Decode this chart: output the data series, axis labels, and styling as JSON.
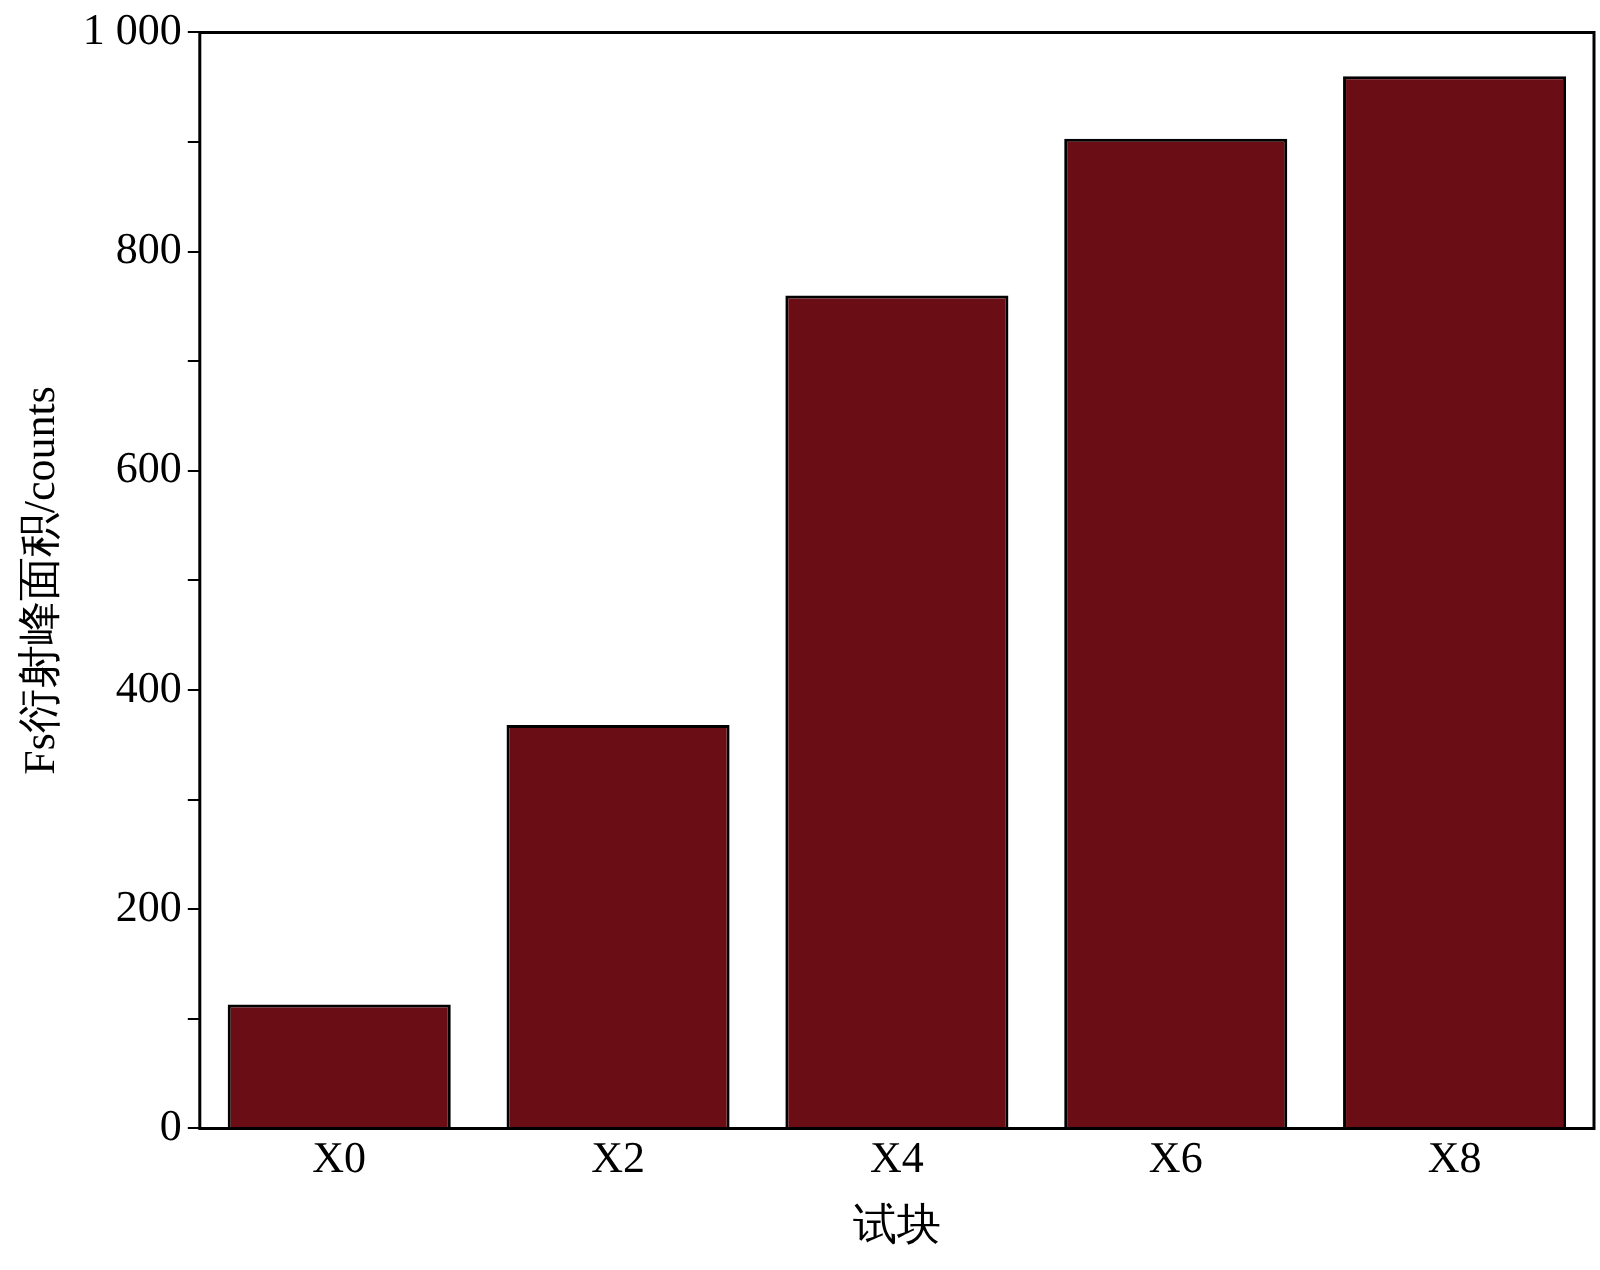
{
  "chart_data": {
    "type": "bar",
    "xlabel": "试块",
    "ylabel": "Fs衍射峰面积/counts",
    "categories": [
      "X0",
      "X2",
      "X4",
      "X6",
      "X8"
    ],
    "values": [
      113,
      368,
      760,
      903,
      960
    ],
    "color": "#6b0d14",
    "ylim": [
      0,
      1000
    ],
    "yticks": [
      0,
      {
        "value": 100,
        "label": null
      },
      200,
      {
        "value": 300,
        "label": null
      },
      400,
      {
        "value": 500,
        "label": null
      },
      600,
      {
        "value": 700,
        "label": null
      },
      800,
      {
        "value": 900,
        "label": null
      },
      {
        "value": 1000,
        "label": "1 000"
      }
    ],
    "grid": false,
    "legend": false
  }
}
